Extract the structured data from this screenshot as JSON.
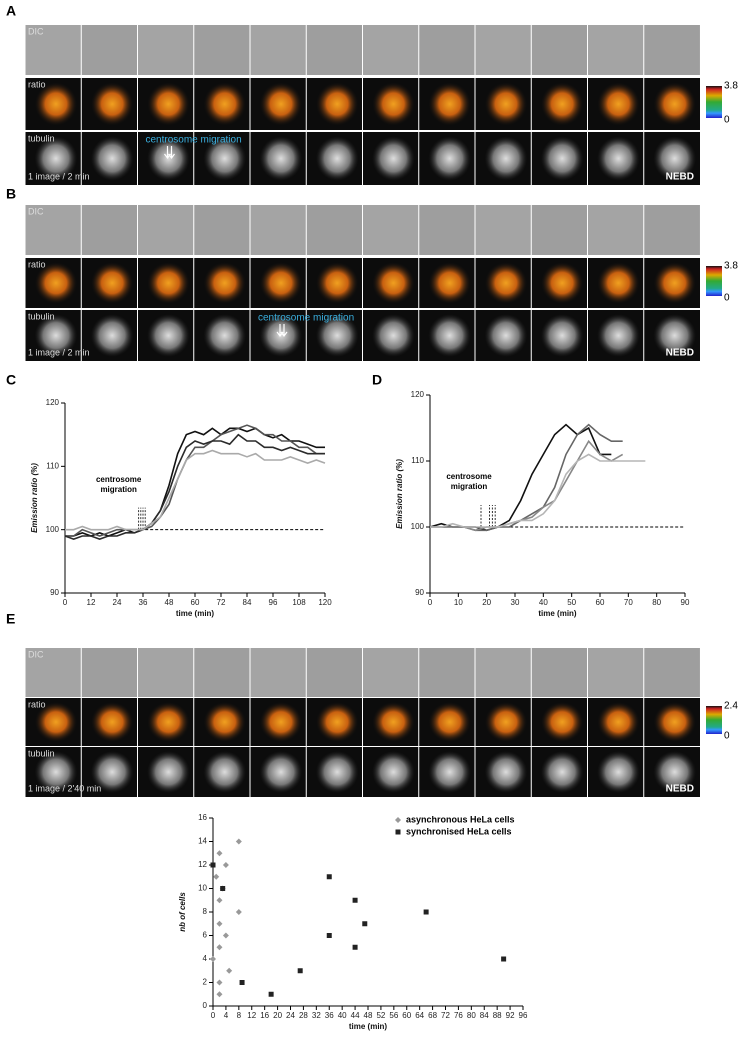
{
  "panels": [
    {
      "label": "A",
      "rows": [
        "DIC",
        "ratio",
        "tubulin"
      ],
      "note": "centrosome migration",
      "interval": "1 image / 2 min",
      "event": "NEBD",
      "scale": [
        3.8,
        0
      ]
    },
    {
      "label": "B",
      "rows": [
        "DIC",
        "ratio",
        "tubulin"
      ],
      "note": "centrosome migration",
      "interval": "1 image / 2 min",
      "event": "NEBD",
      "scale": [
        3.8,
        0
      ]
    },
    {
      "label": "E",
      "rows": [
        "DIC",
        "ratio",
        "tubulin"
      ],
      "interval": "1 image / 2'40 min",
      "event": "NEBD",
      "scale": [
        2.4,
        0
      ]
    }
  ],
  "chart_data": [
    {
      "type": "line",
      "label": "C",
      "xlabel": "time (min)",
      "ylabel": "Emission ratio (%)",
      "annotation": [
        "centrosome",
        "migration"
      ],
      "xlim": [
        0,
        120
      ],
      "ylim": [
        90,
        120
      ],
      "xticks": [
        0,
        12,
        24,
        36,
        48,
        60,
        72,
        84,
        96,
        108,
        120
      ],
      "yticks": [
        90,
        100,
        110,
        120
      ],
      "baseline": 100,
      "markers": [
        34,
        35,
        36,
        37
      ],
      "x": [
        0,
        4,
        8,
        12,
        16,
        20,
        24,
        28,
        32,
        36,
        40,
        44,
        48,
        52,
        56,
        60,
        64,
        68,
        72,
        76,
        80,
        84,
        88,
        92,
        96,
        100,
        104,
        108,
        112,
        116,
        120
      ],
      "series": [
        {
          "color": "#111111",
          "values": [
            99,
            99,
            99.5,
            99,
            99.5,
            99,
            99.5,
            100,
            99.5,
            100,
            101,
            103,
            107,
            112,
            115,
            115.5,
            115,
            116,
            115,
            116,
            116,
            115.5,
            116,
            115,
            114.5,
            115,
            114,
            114,
            113.5,
            113,
            113
          ]
        },
        {
          "color": "#555555",
          "values": [
            99,
            99,
            100,
            99.5,
            99,
            99.5,
            100,
            100,
            100,
            100,
            100.5,
            102,
            104,
            108,
            111,
            113,
            113,
            114,
            115,
            115.5,
            116,
            116.5,
            116,
            115,
            115,
            114,
            114,
            113,
            113,
            112,
            112
          ]
        },
        {
          "color": "#2b2b2b",
          "values": [
            99,
            98.5,
            99,
            99,
            98.5,
            99,
            99,
            99.5,
            99.5,
            100,
            101,
            103,
            106,
            110,
            113,
            114,
            113.5,
            114,
            114,
            113.5,
            115,
            114,
            114,
            113,
            113,
            112.5,
            113,
            112.5,
            112,
            112,
            112
          ]
        },
        {
          "color": "#aaaaaa",
          "values": [
            100,
            100,
            100.5,
            100,
            100,
            100,
            100.5,
            100,
            100,
            100,
            101,
            102,
            105,
            108,
            111,
            112,
            112,
            112.5,
            112,
            112,
            112,
            111.5,
            112,
            111,
            111,
            111,
            111.5,
            111,
            110.5,
            111,
            110.5
          ]
        }
      ]
    },
    {
      "type": "line",
      "label": "D",
      "xlabel": "time (min)",
      "ylabel": "Emission ratio (%)",
      "annotation": [
        "centrosome",
        "migration"
      ],
      "xlim": [
        0,
        90
      ],
      "ylim": [
        90,
        120
      ],
      "xticks": [
        0,
        10,
        20,
        30,
        40,
        50,
        60,
        70,
        80,
        90
      ],
      "yticks": [
        90,
        100,
        110,
        120
      ],
      "baseline": 100,
      "markers": [
        18,
        21,
        22,
        23
      ],
      "x": [
        0,
        4,
        8,
        12,
        16,
        20,
        24,
        28,
        32,
        36,
        40,
        44,
        48,
        52,
        56,
        60,
        64,
        68,
        72,
        76
      ],
      "series": [
        {
          "color": "#111111",
          "values": [
            100,
            100.5,
            100,
            100,
            100,
            99.5,
            100,
            101,
            104,
            108,
            111,
            114,
            115.5,
            114,
            115,
            111,
            111,
            null,
            null,
            null
          ]
        },
        {
          "color": "#666666",
          "values": [
            100,
            100,
            100,
            100,
            99.5,
            99.5,
            100,
            100,
            101,
            102,
            103,
            106,
            111,
            114,
            115.5,
            114,
            113,
            113,
            null,
            null
          ]
        },
        {
          "color": "#888888",
          "values": [
            100,
            100,
            100,
            100,
            99.5,
            100,
            100,
            100.5,
            101,
            101.5,
            103,
            104,
            107,
            110,
            113,
            111,
            110,
            111,
            null,
            null
          ]
        },
        {
          "color": "#b5b5b5",
          "values": [
            100,
            100,
            100.5,
            100,
            100,
            100,
            100,
            100.5,
            101,
            101,
            102,
            104,
            108,
            110,
            111,
            110,
            110,
            110,
            110,
            110
          ]
        }
      ]
    },
    {
      "type": "scatter",
      "xlabel": "time (min)",
      "ylabel": "nb of cells",
      "xlim": [
        0,
        96
      ],
      "ylim": [
        0,
        16
      ],
      "xticks": [
        0,
        4,
        8,
        12,
        16,
        20,
        24,
        28,
        32,
        36,
        40,
        44,
        48,
        52,
        56,
        60,
        64,
        68,
        72,
        76,
        80,
        84,
        88,
        92,
        96
      ],
      "yticks": [
        0,
        2,
        4,
        6,
        8,
        10,
        12,
        14,
        16
      ],
      "series": [
        {
          "name": "asynchronous HeLa cells",
          "color": "#999999",
          "marker": "diamond",
          "x": [
            0,
            1,
            2,
            2,
            2,
            2,
            2,
            2,
            3,
            4,
            4,
            5,
            8,
            8
          ],
          "values": [
            4,
            11,
            1,
            2,
            5,
            7,
            9,
            13,
            10,
            12,
            6,
            3,
            14,
            8
          ]
        },
        {
          "name": "synchronised HeLa cells",
          "color": "#222222",
          "marker": "square",
          "x": [
            0,
            3,
            9,
            18,
            27,
            36,
            36,
            44,
            44,
            47,
            66,
            90
          ],
          "values": [
            12,
            10,
            2,
            1,
            3,
            11,
            6,
            9,
            5,
            7,
            8,
            4
          ]
        }
      ]
    }
  ]
}
